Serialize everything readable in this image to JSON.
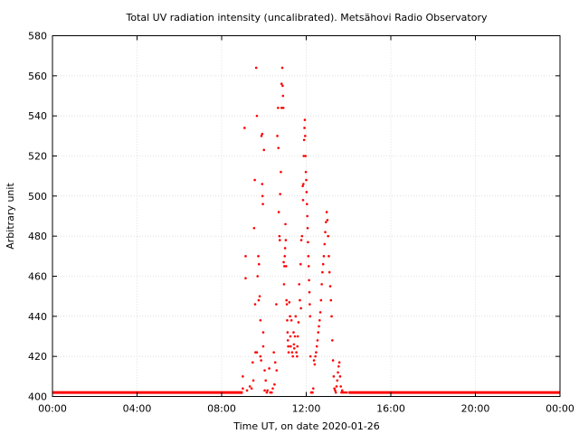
{
  "chart_data": {
    "type": "scatter",
    "title": "Total UV radiation intensity (uncalibrated). Metsähovi Radio Observatory",
    "xlabel": "Time UT, on date 2020-01-26",
    "ylabel": "Arbitrary unit",
    "xlim": [
      "00:00",
      "24:00"
    ],
    "ylim": [
      400,
      580
    ],
    "x_ticks": [
      "00:00",
      "04:00",
      "08:00",
      "12:00",
      "16:00",
      "20:00",
      "00:00"
    ],
    "y_ticks": [
      400,
      420,
      440,
      460,
      480,
      500,
      520,
      540,
      560,
      580
    ],
    "grid": true,
    "legend": "none",
    "marker_color": "#ff0000",
    "baseline": {
      "value": 402,
      "segments": [
        [
          "00:00",
          "09:00"
        ],
        [
          "14:00",
          "24:00"
        ]
      ]
    },
    "series": [
      {
        "points": [
          [
            "09:00",
            404
          ],
          [
            "09:00",
            410
          ],
          [
            "09:05",
            534
          ],
          [
            "09:08",
            470
          ],
          [
            "09:08",
            459
          ],
          [
            "09:12",
            403
          ],
          [
            "09:20",
            405
          ],
          [
            "09:25",
            404
          ],
          [
            "09:28",
            417
          ],
          [
            "09:30",
            408
          ],
          [
            "09:32",
            484
          ],
          [
            "09:34",
            508
          ],
          [
            "09:35",
            446
          ],
          [
            "09:36",
            422
          ],
          [
            "09:38",
            564
          ],
          [
            "09:40",
            540
          ],
          [
            "09:40",
            422
          ],
          [
            "09:42",
            460
          ],
          [
            "09:44",
            470
          ],
          [
            "09:45",
            448
          ],
          [
            "09:46",
            466
          ],
          [
            "09:48",
            450
          ],
          [
            "09:50",
            438
          ],
          [
            "09:50",
            420
          ],
          [
            "09:52",
            418
          ],
          [
            "09:53",
            530
          ],
          [
            "09:55",
            531
          ],
          [
            "09:55",
            506
          ],
          [
            "09:56",
            500
          ],
          [
            "09:57",
            496
          ],
          [
            "09:58",
            432
          ],
          [
            "09:58",
            425
          ],
          [
            "10:00",
            523
          ],
          [
            "10:02",
            413
          ],
          [
            "10:02",
            403
          ],
          [
            "10:05",
            408
          ],
          [
            "10:08",
            402
          ],
          [
            "10:10",
            403
          ],
          [
            "10:15",
            414
          ],
          [
            "10:18",
            402
          ],
          [
            "10:22",
            402
          ],
          [
            "10:25",
            404
          ],
          [
            "10:28",
            422
          ],
          [
            "10:30",
            406
          ],
          [
            "10:32",
            417
          ],
          [
            "10:35",
            446
          ],
          [
            "10:36",
            413
          ],
          [
            "10:38",
            530
          ],
          [
            "10:40",
            544
          ],
          [
            "10:41",
            524
          ],
          [
            "10:42",
            492
          ],
          [
            "10:44",
            480
          ],
          [
            "10:45",
            478
          ],
          [
            "10:46",
            501
          ],
          [
            "10:48",
            512
          ],
          [
            "10:50",
            556
          ],
          [
            "10:50",
            544
          ],
          [
            "10:52",
            564
          ],
          [
            "10:53",
            555
          ],
          [
            "10:54",
            550
          ],
          [
            "10:55",
            544
          ],
          [
            "10:56",
            467
          ],
          [
            "10:57",
            456
          ],
          [
            "10:58",
            465
          ],
          [
            "10:59",
            470
          ],
          [
            "11:00",
            474
          ],
          [
            "11:01",
            486
          ],
          [
            "11:02",
            478
          ],
          [
            "11:03",
            465
          ],
          [
            "11:04",
            448
          ],
          [
            "11:05",
            446
          ],
          [
            "11:06",
            438
          ],
          [
            "11:07",
            432
          ],
          [
            "11:08",
            428
          ],
          [
            "11:09",
            425
          ],
          [
            "11:10",
            422
          ],
          [
            "11:12",
            447
          ],
          [
            "11:14",
            440
          ],
          [
            "11:15",
            430
          ],
          [
            "11:16",
            425
          ],
          [
            "11:18",
            438
          ],
          [
            "11:20",
            422
          ],
          [
            "11:22",
            420
          ],
          [
            "11:24",
            432
          ],
          [
            "11:25",
            426
          ],
          [
            "11:26",
            424
          ],
          [
            "11:28",
            430
          ],
          [
            "11:30",
            440
          ],
          [
            "11:32",
            422
          ],
          [
            "11:34",
            420
          ],
          [
            "11:35",
            425
          ],
          [
            "11:36",
            430
          ],
          [
            "11:38",
            437
          ],
          [
            "11:40",
            456
          ],
          [
            "11:42",
            448
          ],
          [
            "11:44",
            466
          ],
          [
            "11:45",
            444
          ],
          [
            "11:46",
            478
          ],
          [
            "11:48",
            480
          ],
          [
            "11:50",
            505
          ],
          [
            "11:51",
            498
          ],
          [
            "11:52",
            506
          ],
          [
            "11:53",
            520
          ],
          [
            "11:54",
            528
          ],
          [
            "11:55",
            534
          ],
          [
            "11:56",
            538
          ],
          [
            "11:57",
            530
          ],
          [
            "11:58",
            520
          ],
          [
            "11:59",
            512
          ],
          [
            "12:00",
            508
          ],
          [
            "12:01",
            502
          ],
          [
            "12:02",
            496
          ],
          [
            "12:03",
            490
          ],
          [
            "12:04",
            484
          ],
          [
            "12:05",
            477
          ],
          [
            "12:06",
            470
          ],
          [
            "12:07",
            465
          ],
          [
            "12:08",
            458
          ],
          [
            "12:09",
            452
          ],
          [
            "12:10",
            446
          ],
          [
            "12:11",
            440
          ],
          [
            "12:12",
            420
          ],
          [
            "12:14",
            402
          ],
          [
            "12:16",
            402
          ],
          [
            "12:18",
            402
          ],
          [
            "12:20",
            404
          ],
          [
            "12:22",
            418
          ],
          [
            "12:24",
            416
          ],
          [
            "12:26",
            420
          ],
          [
            "12:28",
            422
          ],
          [
            "12:30",
            425
          ],
          [
            "12:32",
            428
          ],
          [
            "12:34",
            432
          ],
          [
            "12:36",
            435
          ],
          [
            "12:38",
            438
          ],
          [
            "12:40",
            442
          ],
          [
            "12:42",
            448
          ],
          [
            "12:44",
            456
          ],
          [
            "12:46",
            462
          ],
          [
            "12:48",
            466
          ],
          [
            "12:50",
            470
          ],
          [
            "12:52",
            476
          ],
          [
            "12:54",
            482
          ],
          [
            "12:56",
            487
          ],
          [
            "12:58",
            492
          ],
          [
            "13:00",
            488
          ],
          [
            "13:02",
            480
          ],
          [
            "13:04",
            470
          ],
          [
            "13:06",
            462
          ],
          [
            "13:08",
            455
          ],
          [
            "13:10",
            448
          ],
          [
            "13:12",
            440
          ],
          [
            "13:14",
            428
          ],
          [
            "13:16",
            418
          ],
          [
            "13:18",
            410
          ],
          [
            "13:20",
            404
          ],
          [
            "13:22",
            403
          ],
          [
            "13:24",
            402
          ],
          [
            "13:26",
            405
          ],
          [
            "13:28",
            408
          ],
          [
            "13:30",
            412
          ],
          [
            "13:32",
            415
          ],
          [
            "13:34",
            417
          ],
          [
            "13:36",
            410
          ],
          [
            "13:38",
            405
          ],
          [
            "13:40",
            402
          ],
          [
            "13:42",
            403
          ],
          [
            "13:45",
            402
          ],
          [
            "13:50",
            402
          ],
          [
            "13:55",
            402
          ]
        ]
      }
    ]
  }
}
